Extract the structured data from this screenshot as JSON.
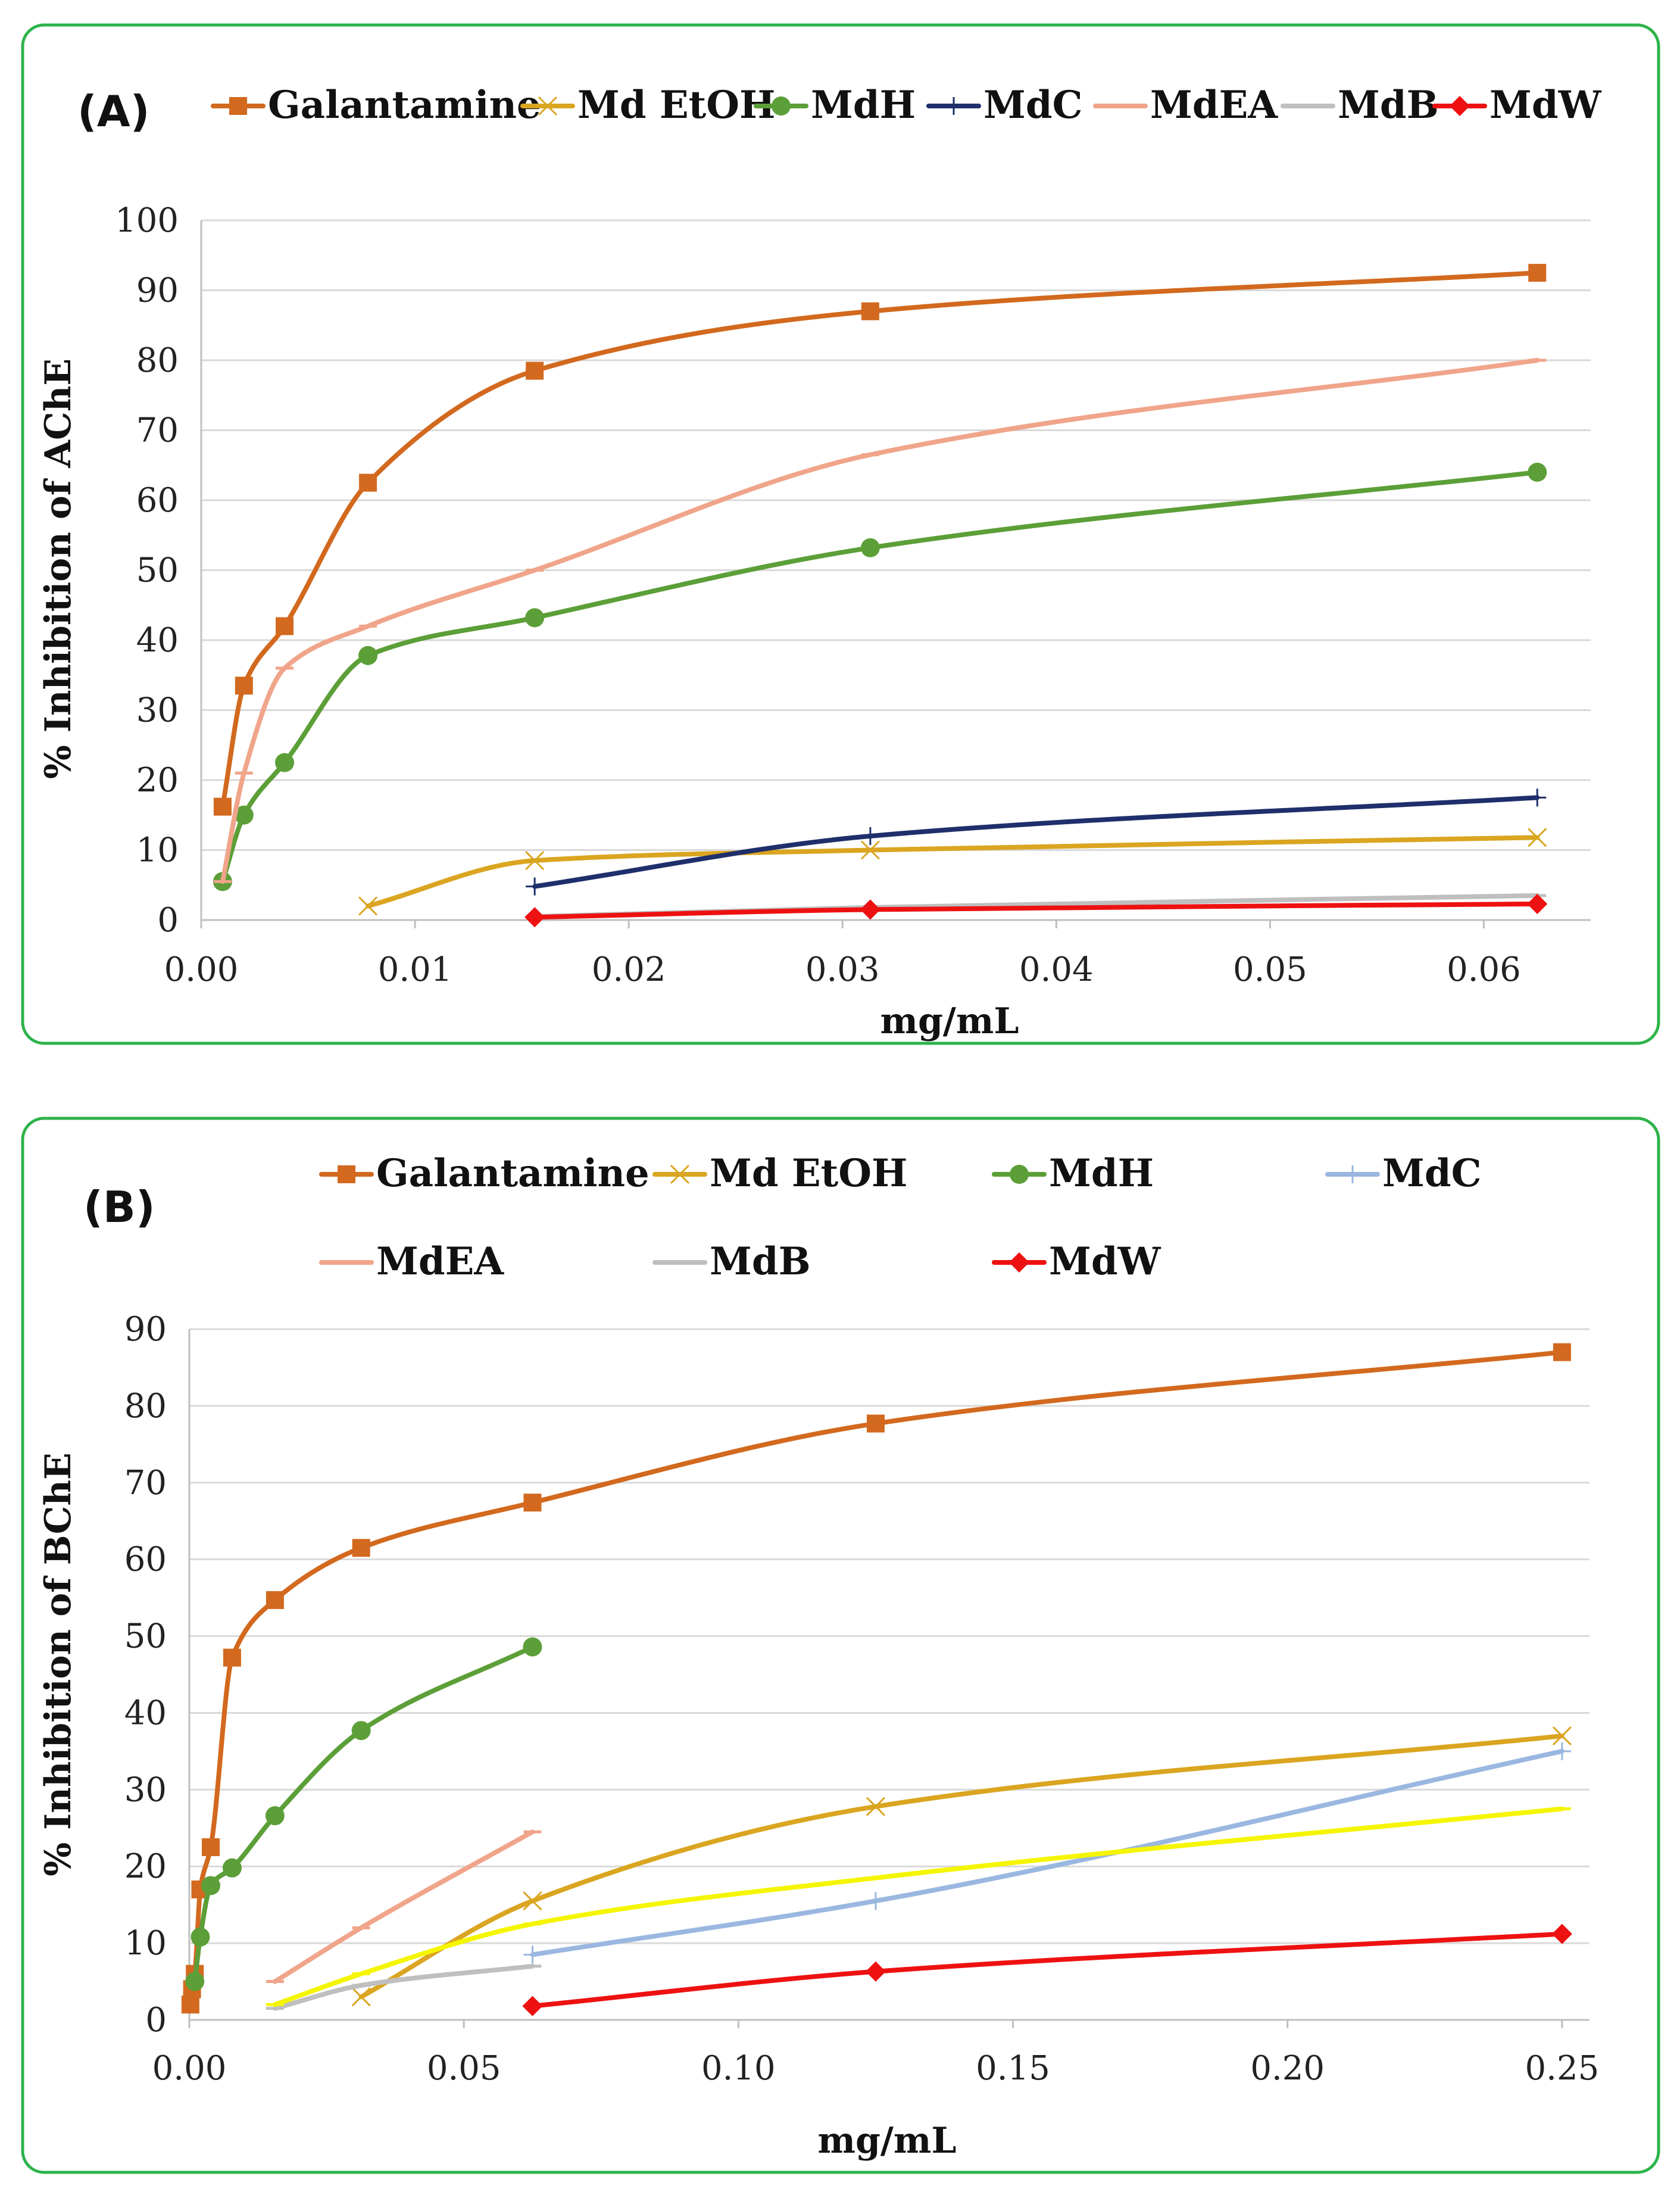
{
  "chart_data": [
    {
      "type": "line",
      "panel_label": "(A)",
      "xlabel": "mg/mL",
      "ylabel": "% Inhibition of AChE",
      "xlim": [
        0,
        0.065
      ],
      "ylim": [
        0,
        100
      ],
      "xticks": [
        0,
        0.01,
        0.02,
        0.03,
        0.04,
        0.05,
        0.06
      ],
      "xtick_labels": [
        "0.00",
        "0.01",
        "0.02",
        "0.03",
        "0.04",
        "0.05",
        "0.06"
      ],
      "yticks": [
        0,
        10,
        20,
        30,
        40,
        50,
        60,
        70,
        80,
        90,
        100
      ],
      "ytick_labels": [
        "0",
        "10",
        "20",
        "30",
        "40",
        "50",
        "60",
        "70",
        "80",
        "90",
        "100"
      ],
      "grid": true,
      "legend_position": "top",
      "series": [
        {
          "name": "Galantamine",
          "color": "#d2691e",
          "marker": "square",
          "x": [
            0.001,
            0.002,
            0.0039,
            0.0078,
            0.0156,
            0.0313,
            0.0625
          ],
          "y": [
            16.2,
            33.5,
            42,
            62.5,
            78.5,
            87,
            92.5
          ]
        },
        {
          "name": "Md EtOH",
          "color": "#daa520",
          "marker": "x",
          "x": [
            0.0078,
            0.0156,
            0.0313,
            0.0625
          ],
          "y": [
            2,
            8.5,
            10,
            11.8
          ]
        },
        {
          "name": "MdH",
          "color": "#5c9f38",
          "marker": "circle",
          "x": [
            0.001,
            0.002,
            0.0039,
            0.0078,
            0.0156,
            0.0313,
            0.0625
          ],
          "y": [
            5.5,
            15,
            22.5,
            37.8,
            43.2,
            53.2,
            64
          ]
        },
        {
          "name": "MdC",
          "color": "#1f2f6b",
          "marker": "plus",
          "x": [
            0.0156,
            0.0313,
            0.0625
          ],
          "y": [
            4.8,
            12,
            17.5
          ]
        },
        {
          "name": "MdEA",
          "color": "#f0a58a",
          "marker": "dash",
          "x": [
            0.001,
            0.002,
            0.0039,
            0.0078,
            0.0156,
            0.0313,
            0.0625
          ],
          "y": [
            5.5,
            21,
            36,
            42,
            50,
            66.5,
            80
          ]
        },
        {
          "name": "MdB",
          "color": "#bfbfbf",
          "marker": "dash",
          "x": [
            0.0156,
            0.0313,
            0.0625
          ],
          "y": [
            0.5,
            1.8,
            3.5
          ]
        },
        {
          "name": "MdW",
          "color": "#ee1111",
          "marker": "diamond",
          "x": [
            0.0156,
            0.0313,
            0.0625
          ],
          "y": [
            0.4,
            1.5,
            2.3
          ]
        }
      ]
    },
    {
      "type": "line",
      "panel_label": "(B)",
      "xlabel": "mg/mL",
      "ylabel": "% Inhibition of BChE",
      "xlim": [
        0,
        0.255
      ],
      "ylim": [
        0,
        90
      ],
      "xticks": [
        0,
        0.05,
        0.1,
        0.15,
        0.2,
        0.25
      ],
      "xtick_labels": [
        "0.00",
        "0.05",
        "0.10",
        "0.15",
        "0.20",
        "0.25"
      ],
      "yticks": [
        0,
        10,
        20,
        30,
        40,
        50,
        60,
        70,
        80,
        90
      ],
      "ytick_labels": [
        "0",
        "10",
        "20",
        "30",
        "40",
        "50",
        "60",
        "70",
        "80",
        "90"
      ],
      "grid": true,
      "legend_position": "top",
      "series": [
        {
          "name": "Galantamine",
          "color": "#d2691e",
          "marker": "square",
          "x": [
            0.0002,
            0.0005,
            0.001,
            0.002,
            0.0039,
            0.0078,
            0.0156,
            0.0313,
            0.0625,
            0.125,
            0.25
          ],
          "y": [
            2,
            4,
            6,
            17,
            22.5,
            47.2,
            54.7,
            61.5,
            67.4,
            77.7,
            87
          ]
        },
        {
          "name": "Md EtOH",
          "color": "#daa520",
          "marker": "x",
          "x": [
            0.0313,
            0.0625,
            0.125,
            0.25
          ],
          "y": [
            3,
            15.5,
            27.8,
            37
          ]
        },
        {
          "name": "MdH",
          "color": "#5c9f38",
          "marker": "circle",
          "x": [
            0.001,
            0.002,
            0.0039,
            0.0078,
            0.0156,
            0.0313,
            0.0625
          ],
          "y": [
            5,
            10.8,
            17.5,
            19.8,
            26.6,
            37.7,
            48.6
          ]
        },
        {
          "name": "MdC",
          "color": "#9ab7e0",
          "marker": "plus",
          "x": [
            0.0625,
            0.125,
            0.25
          ],
          "y": [
            8.5,
            15.5,
            35
          ]
        },
        {
          "name": "MdEA",
          "color": "#f0a58a",
          "marker": "dash",
          "x": [
            0.0156,
            0.0313,
            0.0625
          ],
          "y": [
            5,
            12,
            24.5
          ]
        },
        {
          "name": "MdB",
          "color": "#bfbfbf",
          "marker": "dash",
          "x": [
            0.0156,
            0.0313,
            0.0625
          ],
          "y": [
            1.5,
            4.5,
            7
          ]
        },
        {
          "name": "MdW",
          "color": "#ee1111",
          "marker": "diamond",
          "x": [
            0.0625,
            0.125,
            0.25
          ],
          "y": [
            1.8,
            6.3,
            11.2
          ]
        },
        {
          "name": "",
          "color": "#f5f500",
          "marker": "dash",
          "x": [
            0.0156,
            0.0313,
            0.0625,
            0.125,
            0.25
          ],
          "y": [
            2,
            6,
            12.5,
            18.5,
            27.5
          ]
        }
      ]
    }
  ]
}
